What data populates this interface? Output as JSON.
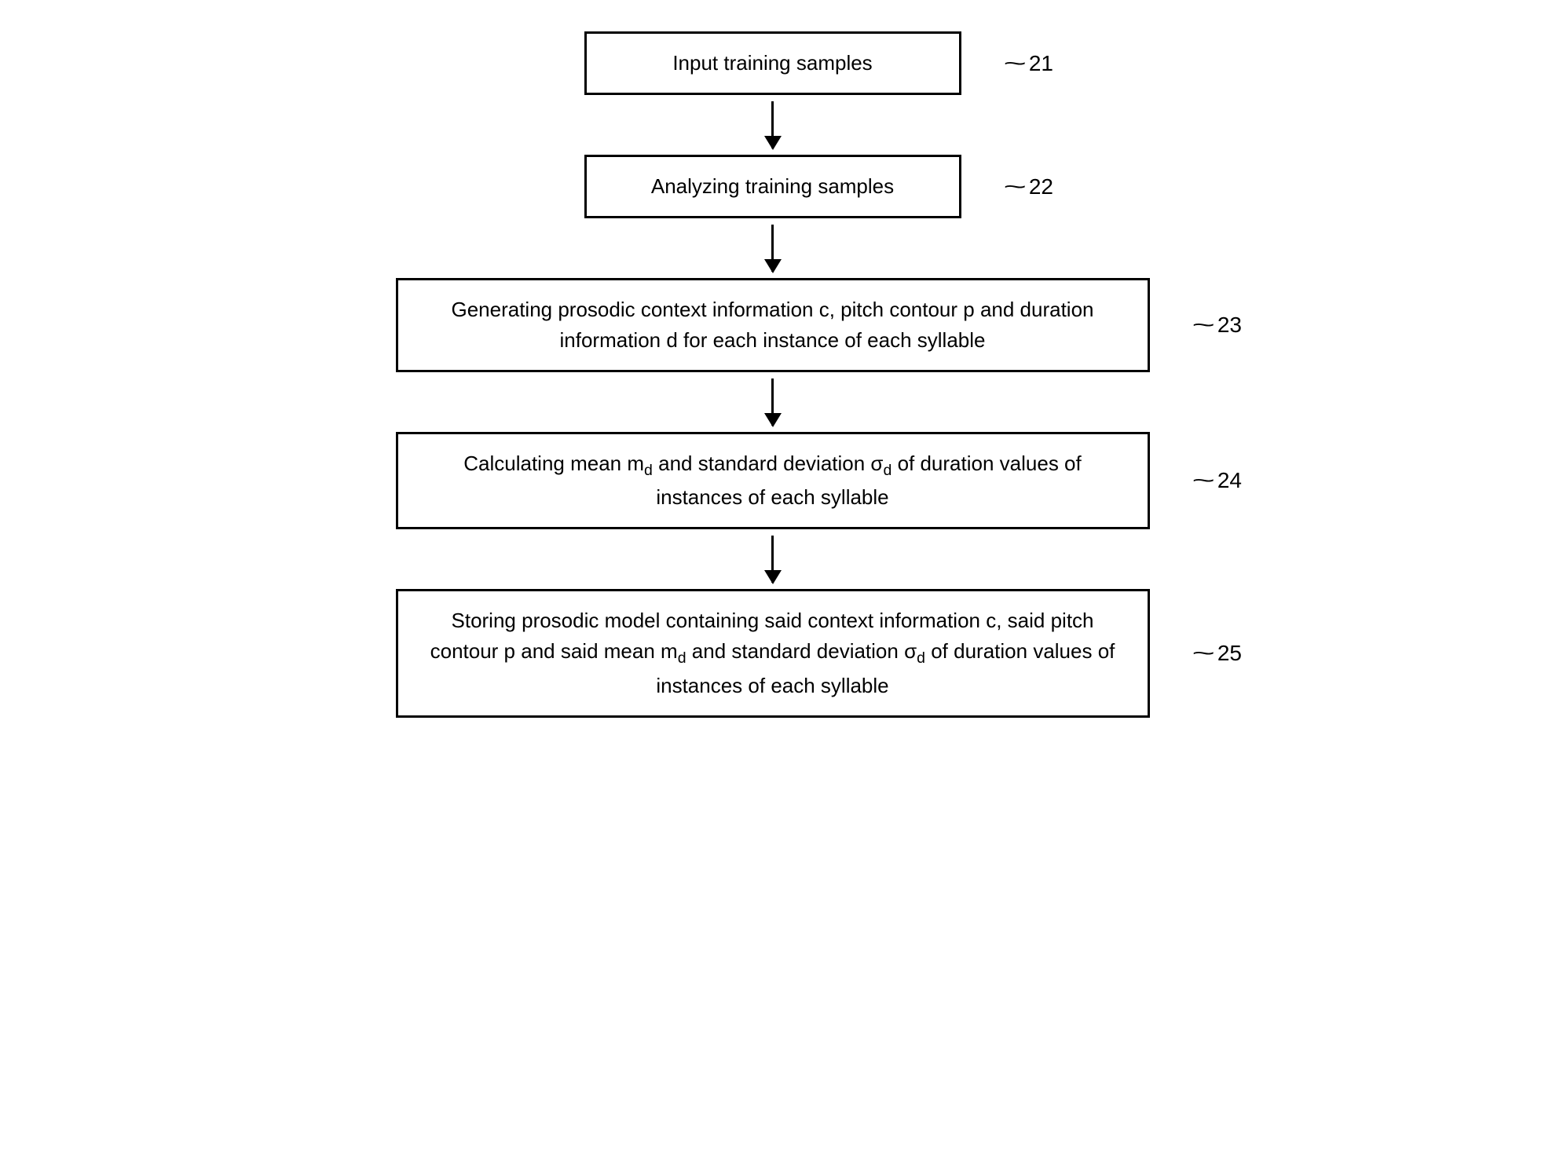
{
  "flowchart": {
    "type": "flowchart",
    "background_color": "#ffffff",
    "border_color": "#000000",
    "border_width": 3,
    "font_size": 26,
    "font_family": "Arial",
    "text_color": "#000000",
    "arrow_color": "#000000",
    "nodes": [
      {
        "id": "n1",
        "label": "Input training samples",
        "ref": "21",
        "width": "narrow"
      },
      {
        "id": "n2",
        "label": "Analyzing training samples",
        "ref": "22",
        "width": "narrow"
      },
      {
        "id": "n3",
        "label_html": "Generating prosodic context information c, pitch contour p and duration information d for each instance of each syllable",
        "ref": "23",
        "width": "wide"
      },
      {
        "id": "n4",
        "label_html": "Calculating mean m<sub>d</sub> and standard deviation σ<sub>d</sub> of duration values of instances of each syllable",
        "ref": "24",
        "width": "wide"
      },
      {
        "id": "n5",
        "label_html": "Storing prosodic model containing said context information c, said pitch contour p and said mean m<sub>d</sub> and standard deviation σ<sub>d</sub> of duration values of instances of each syllable",
        "ref": "25",
        "width": "wide"
      }
    ],
    "edges": [
      {
        "from": "n1",
        "to": "n2"
      },
      {
        "from": "n2",
        "to": "n3"
      },
      {
        "from": "n3",
        "to": "n4"
      },
      {
        "from": "n4",
        "to": "n5"
      }
    ]
  }
}
